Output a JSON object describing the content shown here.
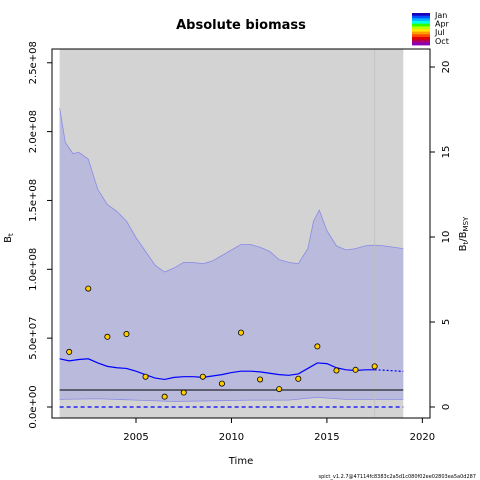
{
  "chart_data": {
    "type": "line",
    "title": "Absolute biomass",
    "xlabel": "Time",
    "ylabel_left": "B",
    "ylabel_left_sub": "t",
    "ylabel_right": "B",
    "ylabel_right_sub": "t",
    "ylabel_right_tail": "/B",
    "ylabel_right_sub2": "MSY",
    "xlim": [
      2000.6,
      2020.4
    ],
    "ylim": [
      -8000000,
      260000000
    ],
    "ylim_right": [
      -0.648,
      21.06
    ],
    "x_ticks": [
      2005,
      2010,
      2015,
      2020
    ],
    "x_tick_labels": [
      "2005",
      "2010",
      "2015",
      "2020"
    ],
    "y_ticks": [
      0,
      50000000,
      100000000,
      150000000,
      200000000,
      250000000
    ],
    "y_tick_labels": [
      "0.0e+00",
      "5.0e+07",
      "1.0e+08",
      "1.5e+08",
      "2.0e+08",
      "2.5e+08"
    ],
    "y_right_ticks": [
      0,
      5,
      10,
      15,
      20
    ],
    "y_right_tick_labels": [
      "0",
      "5",
      "10",
      "15",
      "20"
    ],
    "shade_regions": [
      {
        "from": 2001,
        "to": 2019,
        "color": "#d3d3d3"
      }
    ],
    "vertical_line_x": 2017.5,
    "bmsy": 12300000,
    "lower_ref": 0,
    "median": {
      "x": [
        2001,
        2001.5,
        2002,
        2002.5,
        2003,
        2003.5,
        2004,
        2004.5,
        2005,
        2005.5,
        2006,
        2006.5,
        2007,
        2007.5,
        2008,
        2008.5,
        2009,
        2009.5,
        2010,
        2010.5,
        2011,
        2011.5,
        2012,
        2012.5,
        2013,
        2013.5,
        2014,
        2014.5,
        2015,
        2015.5,
        2016,
        2016.5,
        2017,
        2017.5
      ],
      "y": [
        35000000,
        33500000,
        34500000,
        35000000,
        32000000,
        29500000,
        28500000,
        28000000,
        26000000,
        23500000,
        21000000,
        20000000,
        21500000,
        22000000,
        22000000,
        21500000,
        22500000,
        23500000,
        25000000,
        26000000,
        26000000,
        25500000,
        24500000,
        23500000,
        23000000,
        24000000,
        28000000,
        32000000,
        31500000,
        28500000,
        27000000,
        26500000,
        27000000,
        27000000
      ]
    },
    "forecast": {
      "x": [
        2017.5,
        2018,
        2018.5,
        2019
      ],
      "y": [
        27000000,
        26700000,
        26300000,
        25800000
      ]
    },
    "ci_upper": {
      "x": [
        2001,
        2001.3,
        2001.7,
        2002,
        2002.5,
        2003,
        2003.5,
        2004,
        2004.5,
        2005,
        2005.5,
        2006,
        2006.5,
        2007,
        2007.5,
        2008,
        2008.5,
        2009,
        2009.5,
        2010,
        2010.5,
        2011,
        2011.5,
        2012,
        2012.5,
        2013,
        2013.5,
        2014,
        2014.3,
        2014.6,
        2015,
        2015.5,
        2016,
        2016.5,
        2017,
        2017.5,
        2018,
        2018.5,
        2019
      ],
      "y": [
        217000000,
        192000000,
        184000000,
        185000000,
        180000000,
        158000000,
        147000000,
        142000000,
        135000000,
        123000000,
        113000000,
        103000000,
        98000000,
        101000000,
        105000000,
        105000000,
        104000000,
        106000000,
        110000000,
        114000000,
        118000000,
        118000000,
        116000000,
        113000000,
        107000000,
        105000000,
        104000000,
        115000000,
        135000000,
        143000000,
        128000000,
        117000000,
        114000000,
        115000000,
        117000000,
        117500000,
        117000000,
        116000000,
        115000000
      ]
    },
    "ci_lower": {
      "x": [
        2001,
        2003,
        2005,
        2007,
        2009,
        2011,
        2013,
        2014.5,
        2016,
        2017.5,
        2019
      ],
      "y": [
        5500000,
        6000000,
        5000000,
        4000000,
        4500000,
        5000000,
        5000000,
        7000000,
        5500000,
        5500000,
        5500000
      ]
    },
    "observations": {
      "x": [
        2001.5,
        2002.5,
        2003.5,
        2004.5,
        2005.5,
        2006.5,
        2007.5,
        2008.5,
        2009.5,
        2010.5,
        2011.5,
        2012.5,
        2013.5,
        2014.5,
        2015.5,
        2016.5,
        2017.5
      ],
      "y": [
        40000000,
        86000000,
        51000000,
        53000000,
        22000000,
        7500000,
        10500000,
        22000000,
        17000000,
        54000000,
        20000000,
        13000000,
        20500000,
        44000000,
        26500000,
        27000000,
        29500000
      ]
    },
    "legend": {
      "placement": "top-right",
      "entries": [
        "Jan",
        "Apr",
        "Jul",
        "Oct"
      ],
      "colors": [
        "#1a00b8",
        "#0054ff",
        "#00b4ff",
        "#00ffea",
        "#2aff00",
        "#b4ff00",
        "#ffe800",
        "#ff9c00",
        "#ff4800",
        "#e00000",
        "#b4005a",
        "#8a00b4"
      ]
    },
    "colors": {
      "median": "#0000ff",
      "ci_fill": "#babadc",
      "ci_line": "#8a8ae6",
      "bmsy_line": "#000000",
      "shade": "#d3d3d3",
      "vline": "#c0c0c0",
      "point_fill": "#ffcc00",
      "point_stroke": "#000000"
    }
  },
  "footer_text": "spict_v1.2.7@47114fc8383c2a5d1c080f02ee02803ea5a0d287"
}
